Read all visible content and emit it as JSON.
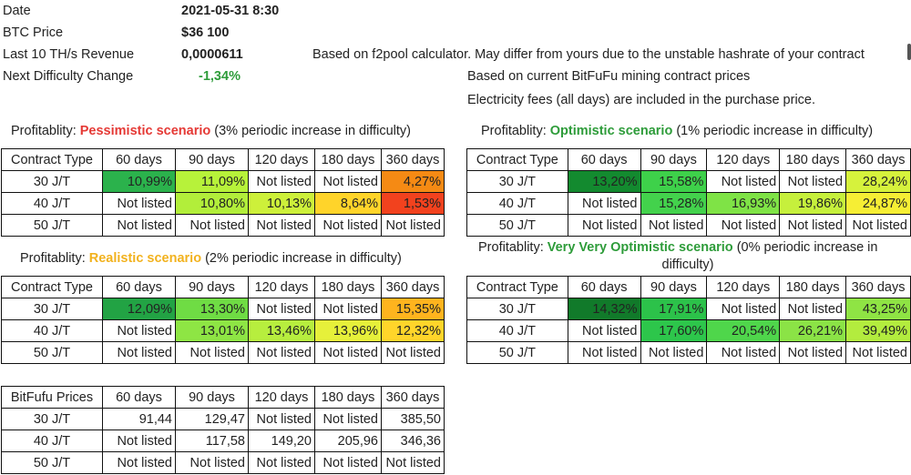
{
  "header": {
    "date_label": "Date",
    "date_value": "2021-05-31 8:30",
    "btc_label": "BTC Price",
    "btc_value": "$36 100",
    "revenue_label": "Last 10 TH/s Revenue",
    "revenue_value": "0,0000611",
    "revenue_note": "Based on f2pool calculator. May differ from yours due to the unstable hashrate of your contract",
    "difficulty_label": "Next Difficulty Change",
    "difficulty_value": "-1,34%",
    "difficulty_color": "#2e9c3a",
    "note_prices": "Based on current BitFuFu mining contract prices",
    "note_fees": "Electricity fees (all days) are included in the purchase price."
  },
  "columns": [
    "60 days",
    "90 days",
    "120 days",
    "180 days",
    "360 days"
  ],
  "contract_type_header": "Contract Type",
  "rows": [
    "30 J/T",
    "40 J/T",
    "50 J/T"
  ],
  "pessimistic": {
    "prefix": "Profitablity: ",
    "name": "Pessimistic scenario",
    "suffix": " (3% periodic increase in difficulty)",
    "cells": [
      [
        "10,99%",
        "11,09%",
        "Not listed",
        "Not listed",
        "4,27%"
      ],
      [
        "Not listed",
        "10,80%",
        "10,13%",
        "8,64%",
        "1,53%"
      ],
      [
        "Not listed",
        "Not listed",
        "Not listed",
        "Not listed",
        "Not listed"
      ]
    ],
    "colors": [
      [
        "#2bb24c",
        "#b7f23a",
        "",
        "",
        "#f58a14"
      ],
      [
        "",
        "#b2ee3a",
        "#cdf03a",
        "#ffd42a",
        "#f2421e"
      ],
      [
        "",
        "",
        "",
        "",
        ""
      ]
    ]
  },
  "optimistic": {
    "prefix": "Profitablity: ",
    "name": "Optimistic scenario",
    "suffix": " (1% periodic increase in difficulty)",
    "cells": [
      [
        "13,20%",
        "15,58%",
        "Not listed",
        "Not listed",
        "28,24%"
      ],
      [
        "Not listed",
        "15,28%",
        "16,93%",
        "19,86%",
        "24,87%"
      ],
      [
        "Not listed",
        "Not listed",
        "Not listed",
        "Not listed",
        "Not listed"
      ]
    ],
    "colors": [
      [
        "#138a2f",
        "#3ed14a",
        "",
        "",
        "#d6f23c"
      ],
      [
        "",
        "#43d24c",
        "#7fe346",
        "#c6f03c",
        "#f6ee34"
      ],
      [
        "",
        "",
        "",
        "",
        ""
      ]
    ]
  },
  "realistic": {
    "prefix": "Profitablity: ",
    "name": "Realistic scenario",
    "suffix": " (2% periodic increase in difficulty)",
    "cells": [
      [
        "12,09%",
        "13,30%",
        "Not listed",
        "Not listed",
        "15,35%"
      ],
      [
        "Not listed",
        "13,01%",
        "13,46%",
        "13,96%",
        "12,32%"
      ],
      [
        "Not listed",
        "Not listed",
        "Not listed",
        "Not listed",
        "Not listed"
      ]
    ],
    "colors": [
      [
        "#22a344",
        "#6fdc44",
        "",
        "",
        "#ffb41e"
      ],
      [
        "",
        "#8ee544",
        "#b7ee3e",
        "#e6f03a",
        "#ffd52a"
      ],
      [
        "",
        "",
        "",
        "",
        ""
      ]
    ]
  },
  "very_optimistic": {
    "prefix": "Profitablity: ",
    "name": "Very Very Optimistic scenario",
    "suffix_line1": " (0% periodic increase in",
    "suffix_line2": "difficulty)",
    "cells": [
      [
        "14,32%",
        "17,91%",
        "Not listed",
        "Not listed",
        "43,25%"
      ],
      [
        "Not listed",
        "17,60%",
        "20,54%",
        "26,21%",
        "39,49%"
      ],
      [
        "Not listed",
        "Not listed",
        "Not listed",
        "Not listed",
        "Not listed"
      ]
    ],
    "colors": [
      [
        "#117a2a",
        "#2cc24a",
        "",
        "",
        "#8fe444"
      ],
      [
        "",
        "#2dc64b",
        "#4fd64b",
        "#8be346",
        "#b3ec3e"
      ],
      [
        "",
        "",
        "",
        "",
        ""
      ]
    ]
  },
  "prices": {
    "header": "BitFufu Prices",
    "cells": [
      [
        "91,44",
        "129,47",
        "Not listed",
        "Not listed",
        "385,50"
      ],
      [
        "Not listed",
        "117,58",
        "149,20",
        "205,96",
        "346,36"
      ],
      [
        "Not listed",
        "Not listed",
        "Not listed",
        "Not listed",
        "Not listed"
      ]
    ]
  }
}
